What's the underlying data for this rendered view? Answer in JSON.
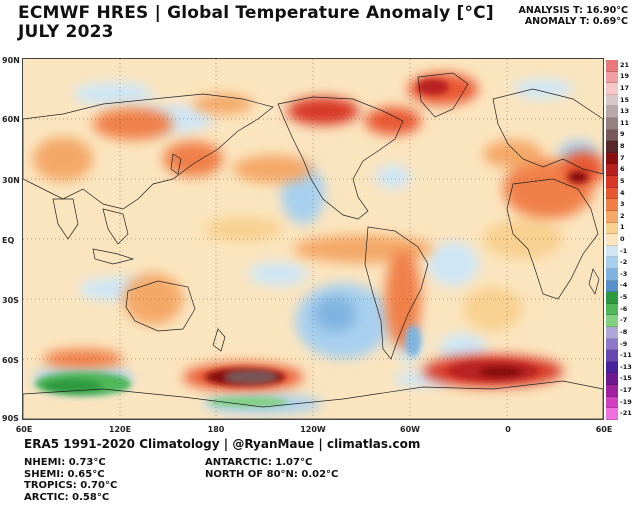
{
  "title": {
    "line1": "ECMWF HRES | Global Temperature Anomaly [°C]",
    "line2": "JULY 2023"
  },
  "analysis": {
    "temperature": "ANALYSIS T: 16.90°C",
    "anomaly": "ANOMALY T: 0.69°C"
  },
  "lat_labels": [
    "90N",
    "60N",
    "30N",
    "EQ",
    "30S",
    "60S",
    "90S"
  ],
  "lon_labels": [
    "60E",
    "120E",
    "180",
    "120W",
    "60W",
    "0",
    "60E"
  ],
  "colorbar": {
    "labels": [
      "21",
      "19",
      "17",
      "15",
      "13",
      "11",
      "9",
      "8",
      "7",
      "6",
      "5",
      "4",
      "3",
      "2",
      "1",
      "0",
      "-1",
      "-2",
      "-3",
      "-4",
      "-5",
      "-6",
      "-7",
      "-8",
      "-9",
      "-11",
      "-13",
      "-15",
      "-17",
      "-19",
      "-21"
    ],
    "colors": [
      "#e8787a",
      "#f0a0a0",
      "#f6c8c8",
      "#d8c8c8",
      "#b8a8a8",
      "#988080",
      "#785858",
      "#582828",
      "#8a1010",
      "#b82020",
      "#d83828",
      "#e85830",
      "#f08048",
      "#f4a868",
      "#f8d090",
      "#fbe5bf",
      "#cfe6f6",
      "#a8d0ee",
      "#80b4e0",
      "#5890cc",
      "#2e9a40",
      "#50b858",
      "#80d080",
      "#b0a8d8",
      "#9078c8",
      "#6848b0",
      "#4820a0",
      "#701890",
      "#a020a0",
      "#d040c0",
      "#f070e0"
    ]
  },
  "footer": "ERA5 1991-2020 Climatology | @RyanMaue | climatlas.com",
  "stats_left": [
    "NHEMI: 0.73°C",
    "SHEMI: 0.65°C",
    "TROPICS: 0.70°C",
    "ARCTIC: 0.58°C"
  ],
  "stats_right": [
    "ANTARCTIC: 1.07°C",
    "NORTH OF 80°N: 0.02°C"
  ]
}
